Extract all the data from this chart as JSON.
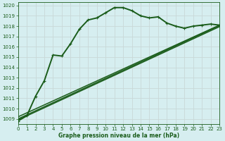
{
  "title": "Graphe pression niveau de la mer (hPa)",
  "bg_color": "#d6eef0",
  "grid_color": "#c8d8d8",
  "line_color": "#1a5c1a",
  "xlim": [
    0,
    23
  ],
  "ylim": [
    1008.5,
    1020.3
  ],
  "xticks": [
    0,
    1,
    2,
    3,
    4,
    5,
    6,
    7,
    8,
    9,
    10,
    11,
    12,
    13,
    14,
    15,
    16,
    17,
    18,
    19,
    20,
    21,
    22,
    23
  ],
  "yticks": [
    1009,
    1010,
    1011,
    1012,
    1013,
    1014,
    1015,
    1016,
    1017,
    1018,
    1019,
    1020
  ],
  "main_series": {
    "x": [
      0,
      1,
      2,
      3,
      4,
      5,
      6,
      7,
      8,
      9,
      10,
      11,
      12,
      13,
      14,
      15,
      16,
      17,
      18,
      19,
      20,
      21,
      22,
      23
    ],
    "y": [
      1008.8,
      1009.3,
      1011.2,
      1012.7,
      1015.2,
      1015.1,
      1016.3,
      1017.7,
      1018.6,
      1018.8,
      1019.3,
      1019.8,
      1019.8,
      1019.5,
      1019.0,
      1018.8,
      1018.9,
      1018.3,
      1018.0,
      1017.8,
      1018.0,
      1018.1,
      1018.2,
      1018.1
    ],
    "linewidth": 1.4,
    "markersize": 3.0
  },
  "trend_series": [
    {
      "x": [
        0,
        23
      ],
      "y": [
        1009.2,
        1018.1
      ],
      "linewidth": 1.1
    },
    {
      "x": [
        0,
        23
      ],
      "y": [
        1009.0,
        1018.05
      ],
      "linewidth": 1.1
    },
    {
      "x": [
        0,
        23
      ],
      "y": [
        1008.9,
        1017.95
      ],
      "linewidth": 1.1
    }
  ],
  "tick_fontsize": 5.0,
  "xlabel_fontsize": 5.5
}
